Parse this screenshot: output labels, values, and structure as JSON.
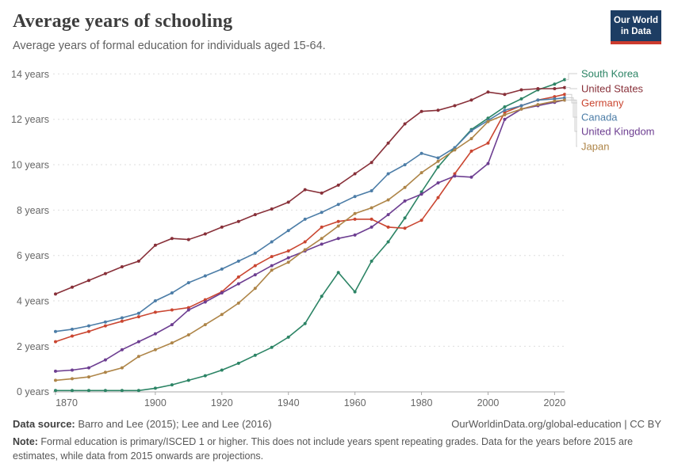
{
  "header": {
    "title": "Average years of schooling",
    "subtitle": "Average years of formal education for individuals aged 15-64."
  },
  "logo": {
    "line1": "Our World",
    "line2": "in Data"
  },
  "footer": {
    "source_label": "Data source:",
    "source_text": " Barro and Lee (2015); Lee and Lee (2016)",
    "link_text": "OurWorldinData.org/global-education | CC BY",
    "note_label": "Note:",
    "note_text": " Formal education is primary/ISCED 1 or higher. This does not include years spent repeating grades. Data for the years before 2015 are estimates, while data from 2015 onwards are projections."
  },
  "chart_data": {
    "type": "line",
    "title": "Average years of schooling",
    "xlabel": "",
    "ylabel": "",
    "ylabel_suffix": " years",
    "grid": "horizontal-dashed",
    "legend_position": "right-of-line-ends",
    "xlim": [
      1870,
      2023
    ],
    "ylim": [
      0,
      14
    ],
    "xticks": [
      1870,
      1900,
      1920,
      1940,
      1960,
      1980,
      2000,
      2020
    ],
    "yticks": [
      0,
      2,
      4,
      6,
      8,
      10,
      12,
      14
    ],
    "x": [
      1870,
      1875,
      1880,
      1885,
      1890,
      1895,
      1900,
      1905,
      1910,
      1915,
      1920,
      1925,
      1930,
      1935,
      1940,
      1945,
      1950,
      1955,
      1960,
      1965,
      1970,
      1975,
      1980,
      1985,
      1990,
      1995,
      2000,
      2005,
      2010,
      2015,
      2020,
      2023
    ],
    "series": [
      {
        "name": "South Korea",
        "color": "#2c8465",
        "values": [
          0.05,
          0.05,
          0.05,
          0.05,
          0.05,
          0.05,
          0.15,
          0.3,
          0.5,
          0.7,
          0.95,
          1.25,
          1.6,
          1.95,
          2.4,
          3.0,
          4.2,
          5.25,
          4.4,
          5.75,
          6.6,
          7.65,
          8.8,
          9.9,
          10.75,
          11.55,
          12.05,
          12.55,
          12.9,
          13.3,
          13.55,
          13.75
        ]
      },
      {
        "name": "United States",
        "color": "#883039",
        "values": [
          4.3,
          4.6,
          4.9,
          5.2,
          5.5,
          5.75,
          6.45,
          6.75,
          6.7,
          6.95,
          7.25,
          7.5,
          7.8,
          8.05,
          8.35,
          8.9,
          8.75,
          9.1,
          9.6,
          10.1,
          10.95,
          11.8,
          12.35,
          12.4,
          12.6,
          12.85,
          13.2,
          13.1,
          13.3,
          13.35,
          13.35,
          13.4
        ]
      },
      {
        "name": "Germany",
        "color": "#ca4631",
        "values": [
          2.2,
          2.45,
          2.65,
          2.9,
          3.1,
          3.3,
          3.5,
          3.6,
          3.7,
          4.05,
          4.4,
          5.05,
          5.55,
          5.95,
          6.2,
          6.6,
          7.25,
          7.5,
          7.6,
          7.6,
          7.25,
          7.2,
          7.55,
          8.55,
          9.6,
          10.6,
          10.95,
          12.3,
          12.6,
          12.85,
          13.0,
          13.1
        ]
      },
      {
        "name": "Canada",
        "color": "#4c7da7",
        "values": [
          2.65,
          2.75,
          2.9,
          3.07,
          3.25,
          3.45,
          4.0,
          4.35,
          4.8,
          5.1,
          5.4,
          5.75,
          6.1,
          6.6,
          7.1,
          7.6,
          7.9,
          8.25,
          8.6,
          8.85,
          9.6,
          10.0,
          10.5,
          10.3,
          10.75,
          11.5,
          11.95,
          12.4,
          12.6,
          12.85,
          12.9,
          12.95
        ]
      },
      {
        "name": "United Kingdom",
        "color": "#6d3e91",
        "values": [
          0.9,
          0.95,
          1.05,
          1.4,
          1.85,
          2.2,
          2.55,
          2.95,
          3.6,
          3.95,
          4.35,
          4.75,
          5.15,
          5.55,
          5.9,
          6.2,
          6.5,
          6.75,
          6.9,
          7.25,
          7.8,
          8.4,
          8.7,
          9.2,
          9.5,
          9.45,
          10.05,
          12.0,
          12.45,
          12.6,
          12.75,
          12.85
        ]
      },
      {
        "name": "Japan",
        "color": "#ae8548",
        "values": [
          0.5,
          0.57,
          0.65,
          0.85,
          1.05,
          1.55,
          1.85,
          2.15,
          2.5,
          2.95,
          3.4,
          3.9,
          4.55,
          5.35,
          5.7,
          6.25,
          6.75,
          7.3,
          7.85,
          8.1,
          8.45,
          9.0,
          9.65,
          10.15,
          10.65,
          11.15,
          11.9,
          12.2,
          12.45,
          12.65,
          12.8,
          12.85
        ]
      }
    ]
  }
}
